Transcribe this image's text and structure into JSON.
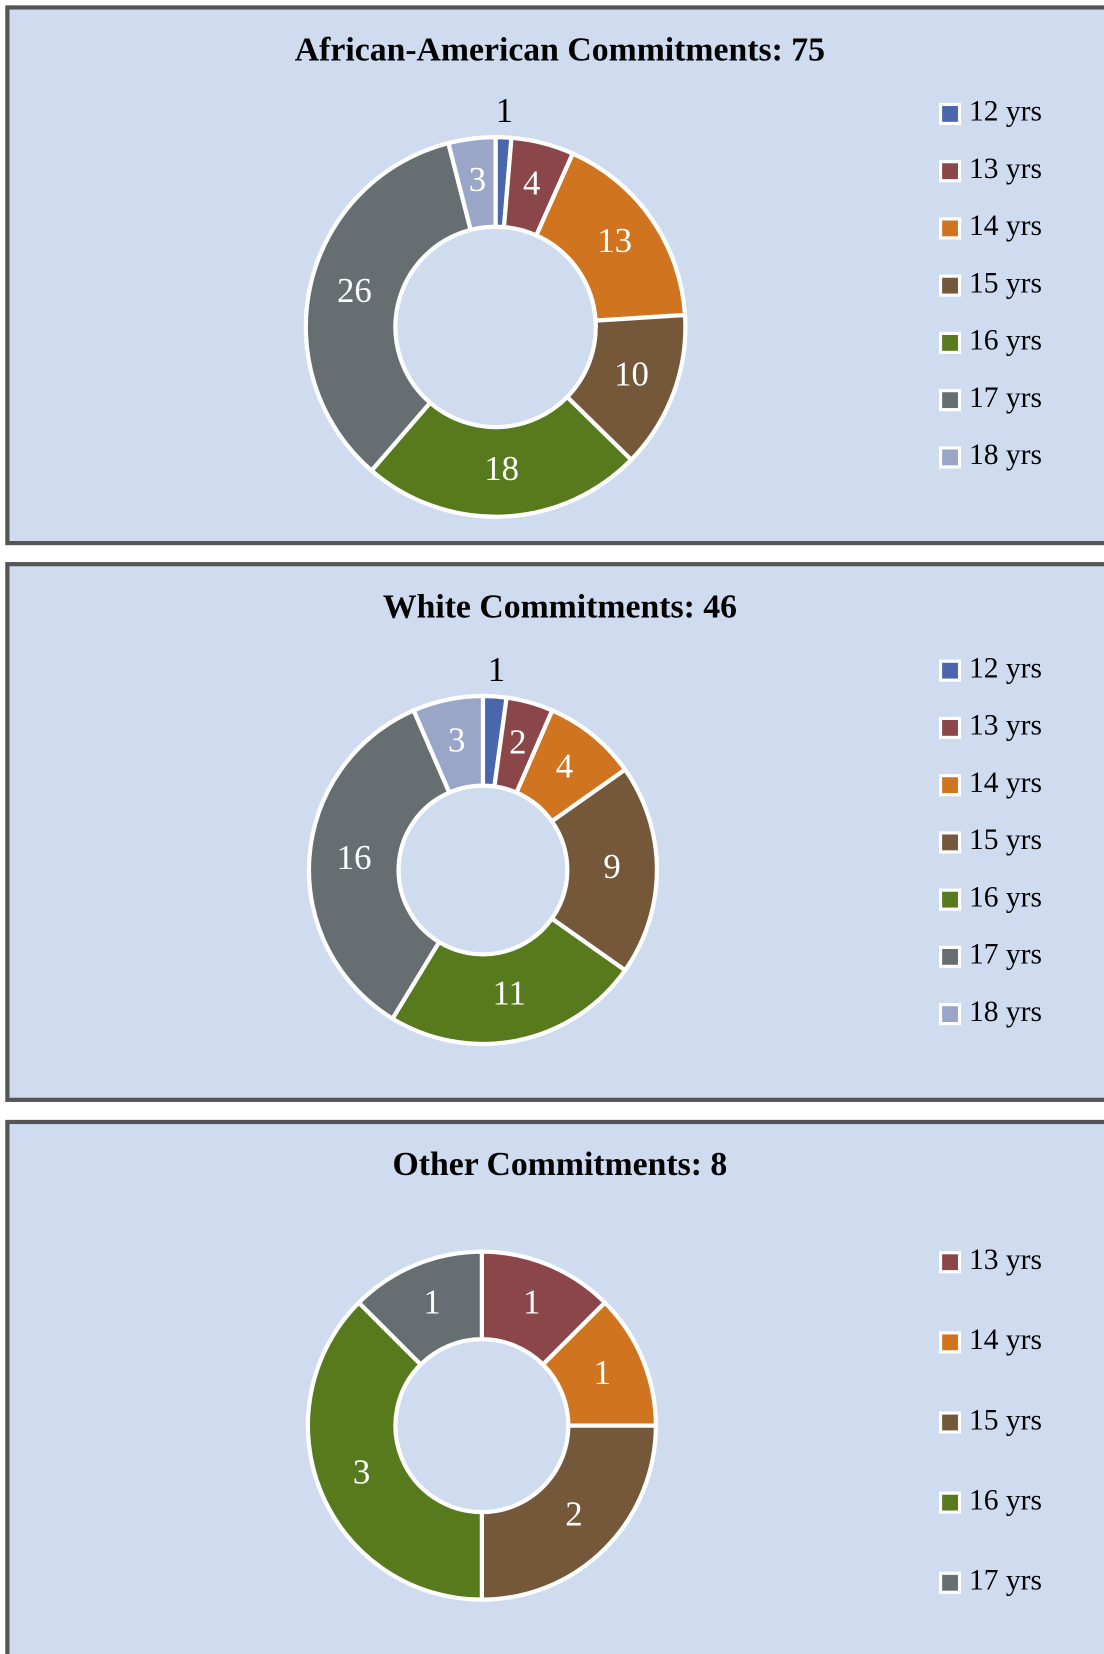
{
  "chart_data": [
    {
      "type": "donut",
      "title": "African-American Commitments: 75",
      "categories": [
        "12 yrs",
        "13 yrs",
        "14 yrs",
        "15 yrs",
        "16 yrs",
        "17 yrs",
        "18 yrs"
      ],
      "values": [
        1,
        4,
        13,
        10,
        18,
        26,
        3
      ],
      "colors": [
        "#4a66ac",
        "#8b4649",
        "#d0741f",
        "#75573a",
        "#577a1d",
        "#676e72",
        "#9aa6c8"
      ],
      "legend": "right"
    },
    {
      "type": "donut",
      "title": "White Commitments: 46",
      "categories": [
        "12 yrs",
        "13 yrs",
        "14 yrs",
        "15 yrs",
        "16 yrs",
        "17 yrs",
        "18 yrs"
      ],
      "values": [
        1,
        2,
        4,
        9,
        11,
        16,
        3
      ],
      "colors": [
        "#4a66ac",
        "#8b4649",
        "#d0741f",
        "#75573a",
        "#577a1d",
        "#676e72",
        "#9aa6c8"
      ],
      "legend": "right"
    },
    {
      "type": "donut",
      "title": "Other Commitments: 8",
      "categories": [
        "13 yrs",
        "14 yrs",
        "15 yrs",
        "16 yrs",
        "17 yrs"
      ],
      "values": [
        1,
        1,
        2,
        3,
        1
      ],
      "colors": [
        "#8b4649",
        "#d0741f",
        "#75573a",
        "#577a1d",
        "#676e72"
      ],
      "legend": "right"
    }
  ]
}
